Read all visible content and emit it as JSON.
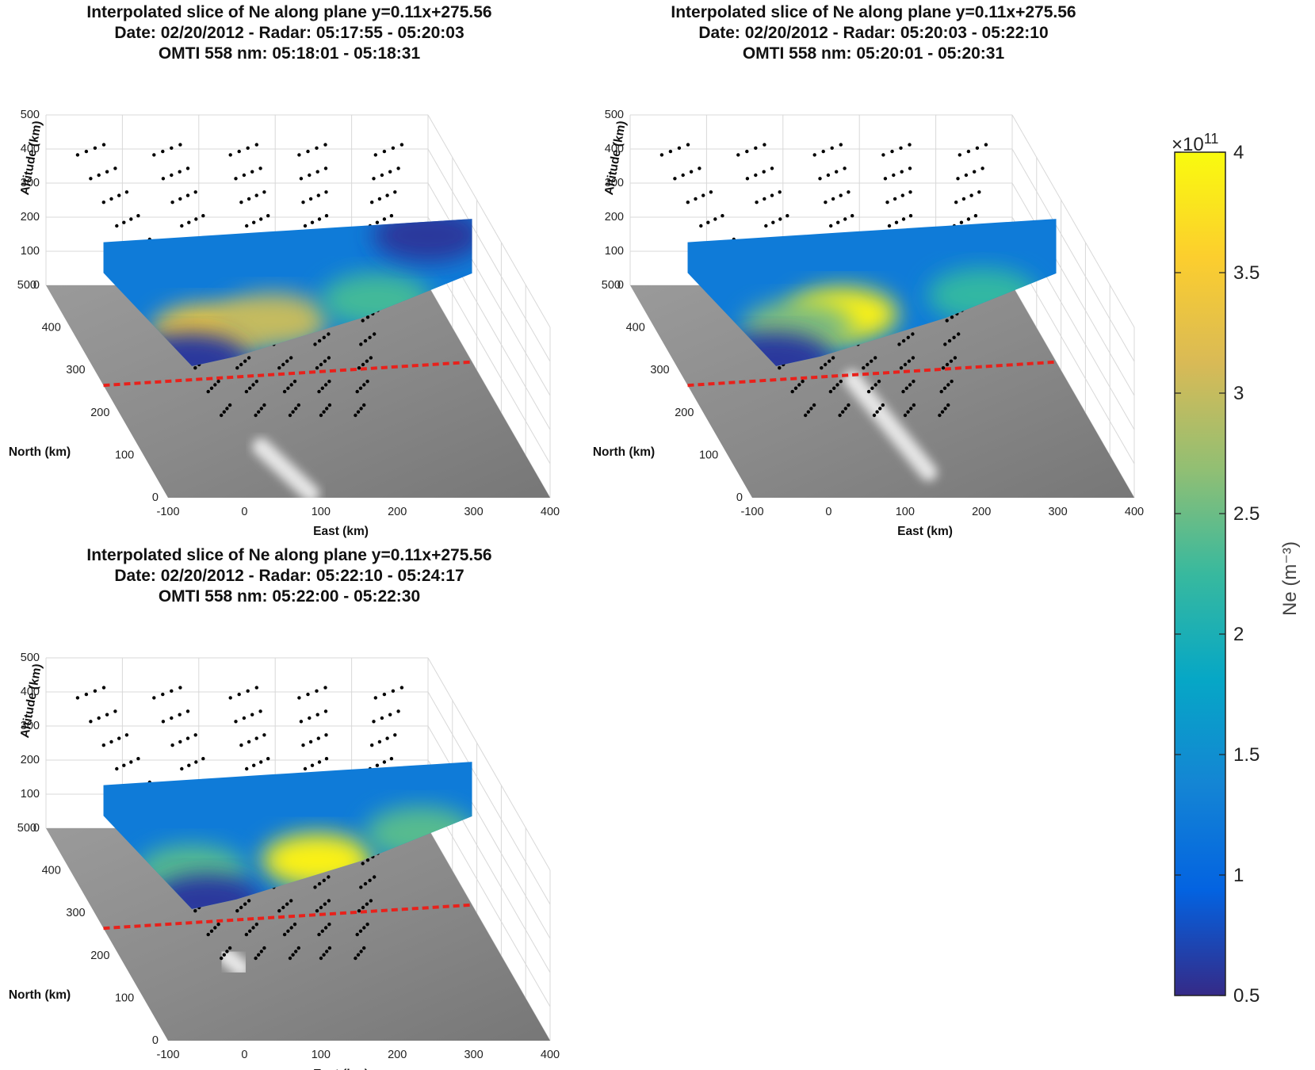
{
  "chart_data": [
    {
      "type": "3d-slice",
      "title_lines": [
        "Interpolated slice of Ne along plane y=0.11x+275.56",
        "Date: 02/20/2012 - Radar: 05:17:55 - 05:20:03",
        "OMTI 558 nm: 05:18:01 - 05:18:31"
      ],
      "xlabel": "East (km)",
      "ylabel": "North (km)",
      "zlabel": "Altitude (km)",
      "xticks": [
        "-100",
        "0",
        "100",
        "200",
        "300",
        "400"
      ],
      "yticks": [
        "0",
        "100",
        "200",
        "300",
        "400",
        "500"
      ],
      "zticks": [
        "0",
        "100",
        "200",
        "300",
        "400",
        "500"
      ],
      "xlim": [
        -100,
        400
      ],
      "ylim": [
        0,
        500
      ],
      "zlim": [
        0,
        500
      ],
      "plane": {
        "slope": 0.11,
        "intercept": 275.56,
        "color": "#e8211b"
      },
      "slice_peaks": [
        {
          "x": 40,
          "z": 140,
          "ne": 3.4
        },
        {
          "x": 130,
          "z": 160,
          "ne": 3.0
        },
        {
          "x": 270,
          "z": 200,
          "ne": 2.3
        },
        {
          "x": 20,
          "z": 60,
          "ne": 0.6
        },
        {
          "x": 340,
          "z": 380,
          "ne": 0.6
        }
      ],
      "auroral_arc": {
        "x_start": 60,
        "y_start": 120,
        "x_end": 90,
        "y_end": 10
      }
    },
    {
      "type": "3d-slice",
      "title_lines": [
        "Interpolated slice of Ne along plane y=0.11x+275.56",
        "Date: 02/20/2012 - Radar: 05:20:03 - 05:22:10",
        "OMTI 558 nm: 05:20:01 - 05:20:31"
      ],
      "xlabel": "East (km)",
      "ylabel": "North (km)",
      "zlabel": "Altitude (km)",
      "xticks": [
        "-100",
        "0",
        "100",
        "200",
        "300",
        "400"
      ],
      "yticks": [
        "0",
        "100",
        "200",
        "300",
        "400",
        "500"
      ],
      "zticks": [
        "0",
        "100",
        "200",
        "300",
        "400",
        "500"
      ],
      "xlim": [
        -100,
        400
      ],
      "ylim": [
        0,
        500
      ],
      "zlim": [
        0,
        500
      ],
      "plane": {
        "slope": 0.11,
        "intercept": 275.56,
        "color": "#e8211b"
      },
      "slice_peaks": [
        {
          "x": 110,
          "z": 180,
          "ne": 3.9
        },
        {
          "x": 50,
          "z": 150,
          "ne": 2.6
        },
        {
          "x": 300,
          "z": 210,
          "ne": 2.2
        },
        {
          "x": 20,
          "z": 60,
          "ne": 0.6
        }
      ],
      "auroral_arc": {
        "x_start": 120,
        "y_start": 280,
        "x_end": 150,
        "y_end": 60
      }
    },
    {
      "type": "3d-slice",
      "title_lines": [
        "Interpolated slice of Ne along plane y=0.11x+275.56",
        "Date: 02/20/2012 - Radar: 05:22:10 - 05:24:17",
        "OMTI 558 nm: 05:22:00 - 05:22:30"
      ],
      "xlabel": "East (km)",
      "ylabel": "North (km)",
      "zlabel": "Altitude (km)",
      "xticks": [
        "-100",
        "0",
        "100",
        "200",
        "300",
        "400"
      ],
      "yticks": [
        "0",
        "100",
        "200",
        "300",
        "400",
        "500"
      ],
      "zticks": [
        "0",
        "100",
        "200",
        "300",
        "400",
        "500"
      ],
      "xlim": [
        -100,
        400
      ],
      "ylim": [
        0,
        500
      ],
      "zlim": [
        0,
        500
      ],
      "plane": {
        "slope": 0.11,
        "intercept": 275.56,
        "color": "#e8211b"
      },
      "slice_peaks": [
        {
          "x": 190,
          "z": 160,
          "ne": 3.9
        },
        {
          "x": 20,
          "z": 150,
          "ne": 2.4
        },
        {
          "x": 330,
          "z": 220,
          "ne": 2.4
        },
        {
          "x": 40,
          "z": 60,
          "ne": 0.6
        }
      ],
      "auroral_arc": {
        "x_start": 40,
        "y_start": 200,
        "x_end": 50,
        "y_end": 170
      }
    }
  ],
  "colorbar": {
    "label": "Ne (m⁻³)",
    "exponent": "×10",
    "exponent_power": "11",
    "ticks": [
      "0.5",
      "1",
      "1.5",
      "2",
      "2.5",
      "3",
      "3.5",
      "4"
    ],
    "range": [
      0.5,
      4
    ],
    "colormap": "parula",
    "stops": [
      "#352a87",
      "#0363e1",
      "#1485d4",
      "#06a7c6",
      "#38b99e",
      "#92bf73",
      "#d9ba56",
      "#fcce2e",
      "#f9fb0e"
    ]
  },
  "colors": {
    "radar_beams": "#000000",
    "plane_line": "#e8211b"
  }
}
